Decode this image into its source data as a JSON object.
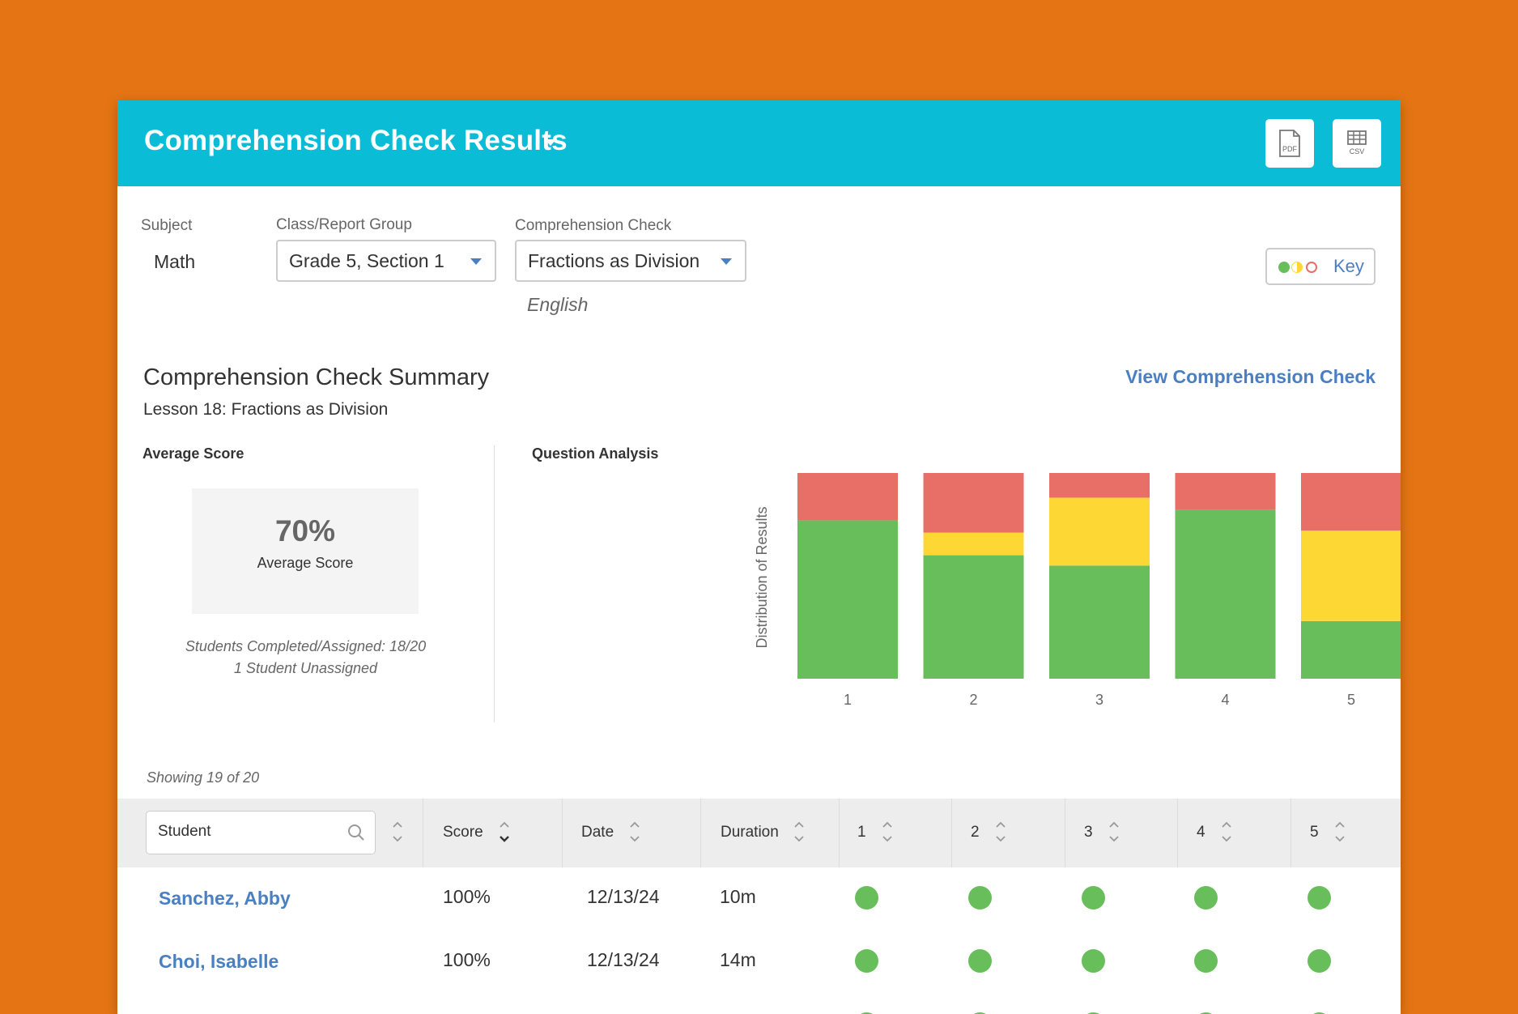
{
  "header": {
    "title": "Comprehension Check Results",
    "pdf_label": "PDF",
    "csv_label": "CSV"
  },
  "filters": {
    "subject_label": "Subject",
    "subject_value": "Math",
    "class_label": "Class/Report Group",
    "class_value": "Grade 5, Section 1",
    "check_label": "Comprehension Check",
    "check_value": "Fractions as Division",
    "language": "English"
  },
  "key_button": {
    "label": "Key"
  },
  "summary": {
    "title": "Comprehension Check Summary",
    "lesson": "Lesson 18: Fractions as Division",
    "view_link": "View Comprehension Check",
    "average_heading": "Average Score",
    "average_value": "70%",
    "average_caption": "Average Score",
    "completed_note": "Students Completed/Assigned: 18/20",
    "unassigned_note": "1 Student Unassigned",
    "analysis_heading": "Question Analysis"
  },
  "chart_data": {
    "type": "bar",
    "stacked": true,
    "categories": [
      "1",
      "2",
      "3",
      "4",
      "5"
    ],
    "ylabel": "Distribution of Results",
    "ylim": [
      0,
      100
    ],
    "series": [
      {
        "color": "#67BE5A",
        "values": [
          77,
          60,
          55,
          82,
          28
        ]
      },
      {
        "color": "#FDD835",
        "values": [
          0,
          11,
          33,
          0,
          44
        ]
      },
      {
        "color": "#E86F68",
        "values": [
          23,
          29,
          12,
          18,
          28
        ]
      }
    ]
  },
  "table": {
    "showing": "Showing 19 of 20",
    "search_placeholder": "Student",
    "columns": [
      "Score",
      "Date",
      "Duration",
      "1",
      "2",
      "3",
      "4",
      "5"
    ],
    "rows": [
      {
        "name": "Sanchez, Abby",
        "score": "100%",
        "date": "12/13/24",
        "duration": "10m",
        "results": [
          "correct",
          "correct",
          "correct",
          "correct",
          "correct"
        ]
      },
      {
        "name": "Choi, Isabelle",
        "score": "100%",
        "date": "12/13/24",
        "duration": "14m",
        "results": [
          "correct",
          "correct",
          "correct",
          "correct",
          "correct"
        ]
      }
    ]
  },
  "colors": {
    "background": "#E57514",
    "header": "#0BBCD6",
    "link": "#4A7FC1",
    "correct": "#67BE5A",
    "partial": "#FDD835",
    "incorrect": "#E86F68"
  }
}
